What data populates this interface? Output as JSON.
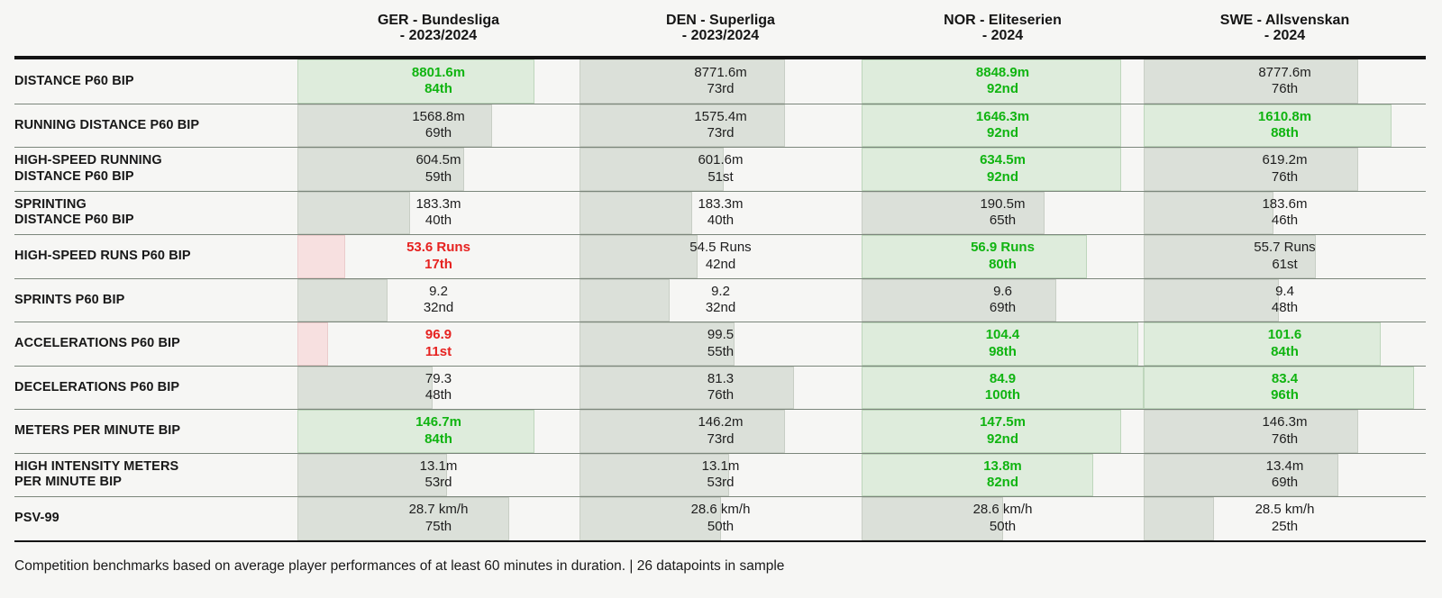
{
  "header": {
    "columns": [
      {
        "league": "GER - Bundesliga",
        "season": "- 2023/2024"
      },
      {
        "league": "DEN - Superliga",
        "season": "- 2023/2024"
      },
      {
        "league": "NOR - Eliteserien",
        "season": "- 2024"
      },
      {
        "league": "SWE - Allsvenskan",
        "season": "- 2024"
      }
    ]
  },
  "rows": [
    {
      "label_lines": [
        "DISTANCE P60 BIP"
      ],
      "cells": [
        {
          "value": "8801.6m",
          "pct": 84,
          "pct_label": "84th",
          "tone": "green"
        },
        {
          "value": "8771.6m",
          "pct": 73,
          "pct_label": "73rd",
          "tone": "neutral"
        },
        {
          "value": "8848.9m",
          "pct": 92,
          "pct_label": "92nd",
          "tone": "green"
        },
        {
          "value": "8777.6m",
          "pct": 76,
          "pct_label": "76th",
          "tone": "neutral"
        }
      ]
    },
    {
      "label_lines": [
        "RUNNING DISTANCE P60 BIP"
      ],
      "cells": [
        {
          "value": "1568.8m",
          "pct": 69,
          "pct_label": "69th",
          "tone": "neutral"
        },
        {
          "value": "1575.4m",
          "pct": 73,
          "pct_label": "73rd",
          "tone": "neutral"
        },
        {
          "value": "1646.3m",
          "pct": 92,
          "pct_label": "92nd",
          "tone": "green"
        },
        {
          "value": "1610.8m",
          "pct": 88,
          "pct_label": "88th",
          "tone": "green"
        }
      ]
    },
    {
      "label_lines": [
        "HIGH-SPEED RUNNING",
        "DISTANCE P60 BIP"
      ],
      "cells": [
        {
          "value": "604.5m",
          "pct": 59,
          "pct_label": "59th",
          "tone": "neutral"
        },
        {
          "value": "601.6m",
          "pct": 51,
          "pct_label": "51st",
          "tone": "neutral"
        },
        {
          "value": "634.5m",
          "pct": 92,
          "pct_label": "92nd",
          "tone": "green"
        },
        {
          "value": "619.2m",
          "pct": 76,
          "pct_label": "76th",
          "tone": "neutral"
        }
      ]
    },
    {
      "label_lines": [
        "SPRINTING",
        "DISTANCE P60 BIP"
      ],
      "cells": [
        {
          "value": "183.3m",
          "pct": 40,
          "pct_label": "40th",
          "tone": "neutral"
        },
        {
          "value": "183.3m",
          "pct": 40,
          "pct_label": "40th",
          "tone": "neutral"
        },
        {
          "value": "190.5m",
          "pct": 65,
          "pct_label": "65th",
          "tone": "neutral"
        },
        {
          "value": "183.6m",
          "pct": 46,
          "pct_label": "46th",
          "tone": "neutral"
        }
      ]
    },
    {
      "label_lines": [
        "HIGH-SPEED RUNS P60 BIP"
      ],
      "cells": [
        {
          "value": "53.6 Runs",
          "pct": 17,
          "pct_label": "17th",
          "tone": "red"
        },
        {
          "value": "54.5 Runs",
          "pct": 42,
          "pct_label": "42nd",
          "tone": "neutral"
        },
        {
          "value": "56.9 Runs",
          "pct": 80,
          "pct_label": "80th",
          "tone": "green"
        },
        {
          "value": "55.7 Runs",
          "pct": 61,
          "pct_label": "61st",
          "tone": "neutral"
        }
      ]
    },
    {
      "label_lines": [
        "SPRINTS P60 BIP"
      ],
      "cells": [
        {
          "value": "9.2",
          "pct": 32,
          "pct_label": "32nd",
          "tone": "neutral"
        },
        {
          "value": "9.2",
          "pct": 32,
          "pct_label": "32nd",
          "tone": "neutral"
        },
        {
          "value": "9.6",
          "pct": 69,
          "pct_label": "69th",
          "tone": "neutral"
        },
        {
          "value": "9.4",
          "pct": 48,
          "pct_label": "48th",
          "tone": "neutral"
        }
      ]
    },
    {
      "label_lines": [
        "ACCELERATIONS P60 BIP"
      ],
      "cells": [
        {
          "value": "96.9",
          "pct": 11,
          "pct_label": "11st",
          "tone": "red"
        },
        {
          "value": "99.5",
          "pct": 55,
          "pct_label": "55th",
          "tone": "neutral"
        },
        {
          "value": "104.4",
          "pct": 98,
          "pct_label": "98th",
          "tone": "green"
        },
        {
          "value": "101.6",
          "pct": 84,
          "pct_label": "84th",
          "tone": "green"
        }
      ]
    },
    {
      "label_lines": [
        "DECELERATIONS P60 BIP"
      ],
      "cells": [
        {
          "value": "79.3",
          "pct": 48,
          "pct_label": "48th",
          "tone": "neutral"
        },
        {
          "value": "81.3",
          "pct": 76,
          "pct_label": "76th",
          "tone": "neutral"
        },
        {
          "value": "84.9",
          "pct": 100,
          "pct_label": "100th",
          "tone": "green"
        },
        {
          "value": "83.4",
          "pct": 96,
          "pct_label": "96th",
          "tone": "green"
        }
      ]
    },
    {
      "label_lines": [
        "METERS PER MINUTE BIP"
      ],
      "cells": [
        {
          "value": "146.7m",
          "pct": 84,
          "pct_label": "84th",
          "tone": "green"
        },
        {
          "value": "146.2m",
          "pct": 73,
          "pct_label": "73rd",
          "tone": "neutral"
        },
        {
          "value": "147.5m",
          "pct": 92,
          "pct_label": "92nd",
          "tone": "green"
        },
        {
          "value": "146.3m",
          "pct": 76,
          "pct_label": "76th",
          "tone": "neutral"
        }
      ]
    },
    {
      "label_lines": [
        "HIGH INTENSITY METERS",
        "PER MINUTE BIP"
      ],
      "cells": [
        {
          "value": "13.1m",
          "pct": 53,
          "pct_label": "53rd",
          "tone": "neutral"
        },
        {
          "value": "13.1m",
          "pct": 53,
          "pct_label": "53rd",
          "tone": "neutral"
        },
        {
          "value": "13.8m",
          "pct": 82,
          "pct_label": "82nd",
          "tone": "green"
        },
        {
          "value": "13.4m",
          "pct": 69,
          "pct_label": "69th",
          "tone": "neutral"
        }
      ]
    },
    {
      "label_lines": [
        "PSV-99"
      ],
      "cells": [
        {
          "value": "28.7 km/h",
          "pct": 75,
          "pct_label": "75th",
          "tone": "neutral"
        },
        {
          "value": "28.6 km/h",
          "pct": 50,
          "pct_label": "50th",
          "tone": "neutral"
        },
        {
          "value": "28.6 km/h",
          "pct": 50,
          "pct_label": "50th",
          "tone": "neutral"
        },
        {
          "value": "28.5 km/h",
          "pct": 25,
          "pct_label": "25th",
          "tone": "neutral"
        }
      ]
    }
  ],
  "footer": {
    "note": "Competition benchmarks based on average player performances of at least 60 minutes in duration. | 26 datapoints in sample"
  },
  "colors": {
    "background": "#f6f6f4",
    "bar_green": "#deecdc",
    "bar_neutral": "#dbe0d9",
    "bar_red": "#f7e0e0",
    "text_green": "#10b411",
    "text_red": "#e62220",
    "rule_thin": "#7b867b",
    "rule_thick": "#141414"
  },
  "chart_data": {
    "type": "table",
    "columns": [
      "GER - Bundesliga - 2023/2024",
      "DEN - Superliga - 2023/2024",
      "NOR - Eliteserien - 2024",
      "SWE - Allsvenskan - 2024"
    ],
    "rows": [
      {
        "metric": "DISTANCE P60 BIP",
        "values": [
          "8801.6m",
          "8771.6m",
          "8848.9m",
          "8777.6m"
        ],
        "percentiles": [
          84,
          73,
          92,
          76
        ]
      },
      {
        "metric": "RUNNING DISTANCE P60 BIP",
        "values": [
          "1568.8m",
          "1575.4m",
          "1646.3m",
          "1610.8m"
        ],
        "percentiles": [
          69,
          73,
          92,
          88
        ]
      },
      {
        "metric": "HIGH-SPEED RUNNING DISTANCE P60 BIP",
        "values": [
          "604.5m",
          "601.6m",
          "634.5m",
          "619.2m"
        ],
        "percentiles": [
          59,
          51,
          92,
          76
        ]
      },
      {
        "metric": "SPRINTING DISTANCE P60 BIP",
        "values": [
          "183.3m",
          "183.3m",
          "190.5m",
          "183.6m"
        ],
        "percentiles": [
          40,
          40,
          65,
          46
        ]
      },
      {
        "metric": "HIGH-SPEED RUNS P60 BIP",
        "values": [
          "53.6 Runs",
          "54.5 Runs",
          "56.9 Runs",
          "55.7 Runs"
        ],
        "percentiles": [
          17,
          42,
          80,
          61
        ]
      },
      {
        "metric": "SPRINTS P60 BIP",
        "values": [
          "9.2",
          "9.2",
          "9.6",
          "9.4"
        ],
        "percentiles": [
          32,
          32,
          69,
          48
        ]
      },
      {
        "metric": "ACCELERATIONS P60 BIP",
        "values": [
          "96.9",
          "99.5",
          "104.4",
          "101.6"
        ],
        "percentiles": [
          11,
          55,
          98,
          84
        ]
      },
      {
        "metric": "DECELERATIONS P60 BIP",
        "values": [
          "79.3",
          "81.3",
          "84.9",
          "83.4"
        ],
        "percentiles": [
          48,
          76,
          100,
          96
        ]
      },
      {
        "metric": "METERS PER MINUTE BIP",
        "values": [
          "146.7m",
          "146.2m",
          "147.5m",
          "146.3m"
        ],
        "percentiles": [
          84,
          73,
          92,
          76
        ]
      },
      {
        "metric": "HIGH INTENSITY METERS PER MINUTE BIP",
        "values": [
          "13.1m",
          "13.1m",
          "13.8m",
          "13.4m"
        ],
        "percentiles": [
          53,
          53,
          82,
          69
        ]
      },
      {
        "metric": "PSV-99",
        "values": [
          "28.7 km/h",
          "28.6 km/h",
          "28.6 km/h",
          "28.5 km/h"
        ],
        "percentiles": [
          75,
          50,
          50,
          25
        ]
      }
    ],
    "legend": "bar width = percentile within competition benchmark (green ≥80th, red ≤20th)",
    "layout": "horizontal percentile bars behind centered value/percentile text, one column per competition"
  }
}
